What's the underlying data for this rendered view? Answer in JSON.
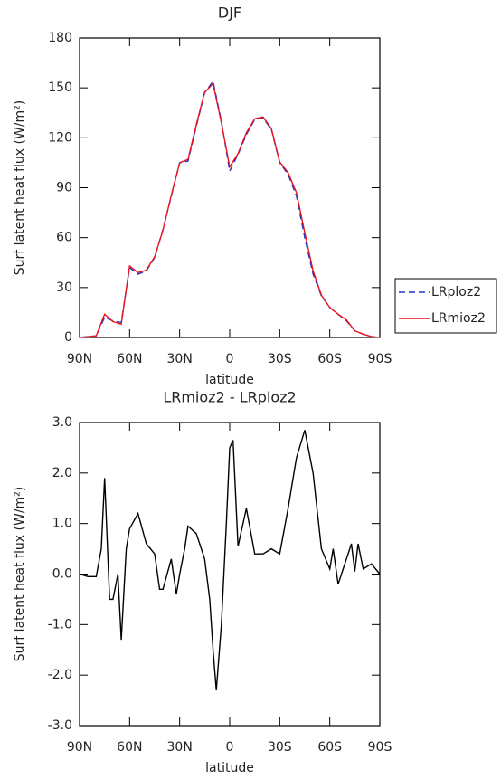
{
  "chart_data": [
    {
      "type": "line",
      "title": "DJF",
      "xlabel": "latitude",
      "ylabel": "Surf latent heat flux (W/m²)",
      "x": [
        90,
        85,
        80,
        75,
        70,
        65,
        60,
        55,
        50,
        45,
        40,
        35,
        30,
        25,
        20,
        15,
        10,
        5,
        0,
        -5,
        -10,
        -15,
        -20,
        -25,
        -30,
        -35,
        -40,
        -45,
        -50,
        -55,
        -60,
        -65,
        -70,
        -75,
        -80,
        -85,
        -90
      ],
      "series": [
        {
          "name": "LRploz2",
          "color": "#2233cc",
          "linestyle": "dashed",
          "values": [
            0,
            0.5,
            1,
            12,
            10,
            9,
            42,
            38,
            40,
            48,
            65,
            85,
            105,
            106,
            127,
            147,
            154,
            130,
            100,
            110,
            122,
            131,
            132,
            125,
            105,
            98,
            85,
            60,
            38,
            25,
            18,
            14,
            10,
            4,
            2,
            0.5,
            0
          ]
        },
        {
          "name": "LRmioz2",
          "color": "#e8141c",
          "linestyle": "solid",
          "values": [
            0,
            0.5,
            1,
            14,
            9.5,
            8,
            43,
            39,
            40.5,
            48.5,
            64.5,
            85.5,
            105,
            107,
            128,
            147.5,
            152.5,
            129,
            102.5,
            110.5,
            123,
            131.5,
            132.5,
            125.5,
            105.5,
            99,
            87,
            63,
            40,
            25.5,
            18,
            14,
            10.5,
            4,
            2,
            0.5,
            0
          ]
        }
      ],
      "xlim": [
        90,
        -90
      ],
      "xticks": [
        {
          "value": 90,
          "label": "90N"
        },
        {
          "value": 60,
          "label": "60N"
        },
        {
          "value": 30,
          "label": "30N"
        },
        0,
        {
          "value": -30,
          "label": "30S"
        },
        {
          "value": -60,
          "label": "60S"
        },
        {
          "value": -90,
          "label": "90S"
        }
      ],
      "ylim": [
        0,
        180
      ],
      "yticks": [
        0,
        30,
        60,
        90,
        120,
        150,
        180
      ],
      "legend": "right"
    },
    {
      "type": "line",
      "title": "LRmioz2 - LRploz2",
      "xlabel": "latitude",
      "ylabel": "Surf latent heat flux (W/m²)",
      "x": [
        90,
        85,
        80,
        77,
        75,
        72,
        70,
        67,
        65,
        62,
        60,
        55,
        50,
        45,
        42,
        40,
        35,
        32,
        30,
        27,
        25,
        20,
        15,
        12,
        10,
        8,
        5,
        2,
        0,
        -2,
        -5,
        -10,
        -15,
        -20,
        -25,
        -30,
        -35,
        -40,
        -45,
        -50,
        -55,
        -60,
        -62,
        -65,
        -70,
        -73,
        -75,
        -77,
        -80,
        -85,
        -90
      ],
      "values": [
        0,
        -0.05,
        -0.05,
        0.5,
        1.9,
        -0.5,
        -0.5,
        0,
        -1.3,
        0.5,
        0.9,
        1.2,
        0.6,
        0.4,
        -0.3,
        -0.3,
        0.3,
        -0.4,
        0,
        0.5,
        0.95,
        0.8,
        0.3,
        -0.5,
        -1.5,
        -2.3,
        -1.0,
        1.0,
        2.5,
        2.65,
        0.55,
        1.3,
        0.4,
        0.4,
        0.5,
        0.4,
        1.3,
        2.3,
        2.85,
        2.0,
        0.5,
        0.1,
        0.5,
        -0.2,
        0.3,
        0.6,
        0.05,
        0.6,
        0.1,
        0.2,
        0
      ],
      "color": "#000000",
      "xlim": [
        90,
        -90
      ],
      "xticks": [
        {
          "value": 90,
          "label": "90N"
        },
        {
          "value": 60,
          "label": "60N"
        },
        {
          "value": 30,
          "label": "30N"
        },
        0,
        {
          "value": -30,
          "label": "30S"
        },
        {
          "value": -60,
          "label": "60S"
        },
        {
          "value": -90,
          "label": "90S"
        }
      ],
      "ylim": [
        -3,
        3
      ],
      "yticks": [
        {
          "value": -3,
          "label": "-3.0"
        },
        {
          "value": -2,
          "label": "-2.0"
        },
        {
          "value": -1,
          "label": "-1.0"
        },
        {
          "value": 0,
          "label": "0.0"
        },
        {
          "value": 1,
          "label": "1.0"
        },
        {
          "value": 2,
          "label": "2.0"
        },
        {
          "value": 3,
          "label": "3.0"
        }
      ]
    }
  ]
}
